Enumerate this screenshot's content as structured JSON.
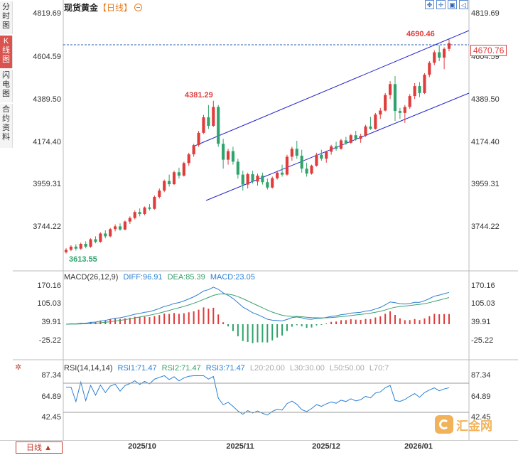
{
  "sidebar": {
    "tabs": [
      {
        "label": "分时图",
        "active": false
      },
      {
        "label": "K线图",
        "active": true
      },
      {
        "label": "闪电图",
        "active": false
      },
      {
        "label": "合约资料",
        "active": false
      }
    ]
  },
  "header": {
    "title": "现货黄金",
    "period_tag": "【日线】",
    "toggle_icon": "minus-circle-icon"
  },
  "toolbar": {
    "icons": [
      "fullscreen-icon",
      "crosshair-icon",
      "image-icon",
      "back-arrow-icon"
    ]
  },
  "colors": {
    "up": "#e03c3c",
    "down": "#2ea36b",
    "channel": "#2222cc",
    "macd_diff": "#2a7fd4",
    "macd_dea": "#3aa06a",
    "rsi": "#2a7fd4"
  },
  "price_axis": {
    "ticks": [
      "4819.69",
      "4604.59",
      "4389.50",
      "4174.40",
      "3959.31",
      "3744.22"
    ]
  },
  "current_price": "4670.76",
  "annotations": {
    "high": "4690.46",
    "peak": "4381.29",
    "low": "3613.55"
  },
  "macd": {
    "label": "MACD(26,12,9)",
    "diff_label": "DIFF:96.91",
    "dea_label": "DEA:85.39",
    "macd_label": "MACD:23.05",
    "ticks": [
      "170.16",
      "105.03",
      "39.91",
      "-25.22"
    ]
  },
  "rsi": {
    "label": "RSI(14,14,14)",
    "rsi1": "RSI1:71.47",
    "rsi2": "RSI2:71.47",
    "rsi3": "RSI3:71.47",
    "l20": "L20:20.00",
    "l30": "L30:30.00",
    "l50": "L50:50.00",
    "l70": "L70:7",
    "ticks": [
      "87.34",
      "64.89",
      "42.45"
    ]
  },
  "period_select": "日线 ▲",
  "x_axis": {
    "labels": [
      "2025/10",
      "2025/11",
      "2025/12",
      "2026/01"
    ]
  },
  "watermark": "汇金网",
  "chart_data": {
    "type": "candlestick",
    "title": "现货黄金",
    "ylim": [
      3613.55,
      4819.69
    ],
    "candles": [
      [
        3620,
        3640,
        3613.55,
        3632
      ],
      [
        3632,
        3655,
        3625,
        3648
      ],
      [
        3648,
        3660,
        3628,
        3638
      ],
      [
        3638,
        3668,
        3632,
        3662
      ],
      [
        3662,
        3675,
        3640,
        3648
      ],
      [
        3648,
        3690,
        3642,
        3685
      ],
      [
        3685,
        3700,
        3665,
        3672
      ],
      [
        3672,
        3720,
        3668,
        3714
      ],
      [
        3714,
        3730,
        3690,
        3700
      ],
      [
        3700,
        3742,
        3695,
        3736
      ],
      [
        3736,
        3760,
        3725,
        3750
      ],
      [
        3750,
        3765,
        3728,
        3734
      ],
      [
        3734,
        3780,
        3730,
        3774
      ],
      [
        3774,
        3800,
        3762,
        3792
      ],
      [
        3792,
        3830,
        3785,
        3822
      ],
      [
        3822,
        3840,
        3800,
        3812
      ],
      [
        3812,
        3850,
        3806,
        3845
      ],
      [
        3845,
        3862,
        3830,
        3838
      ],
      [
        3838,
        3905,
        3834,
        3898
      ],
      [
        3898,
        3940,
        3890,
        3930
      ],
      [
        3930,
        3985,
        3922,
        3978
      ],
      [
        3978,
        4010,
        3950,
        3962
      ],
      [
        3962,
        4030,
        3958,
        4022
      ],
      [
        4022,
        4045,
        3990,
        4005
      ],
      [
        4005,
        4075,
        4000,
        4068
      ],
      [
        4068,
        4120,
        4055,
        4112
      ],
      [
        4112,
        4165,
        4100,
        4158
      ],
      [
        4158,
        4230,
        4150,
        4220
      ],
      [
        4220,
        4310,
        4215,
        4298
      ],
      [
        4298,
        4360,
        4240,
        4255
      ],
      [
        4255,
        4381.29,
        4250,
        4350
      ],
      [
        4350,
        4360,
        4150,
        4165
      ],
      [
        4165,
        4190,
        4040,
        4085
      ],
      [
        4085,
        4140,
        4060,
        4128
      ],
      [
        4128,
        4150,
        4060,
        4075
      ],
      [
        4075,
        4090,
        3990,
        4010
      ],
      [
        4010,
        4030,
        3930,
        3960
      ],
      [
        3960,
        4020,
        3940,
        4012
      ],
      [
        4012,
        4030,
        3965,
        3975
      ],
      [
        3975,
        4015,
        3955,
        4005
      ],
      [
        4005,
        4020,
        3960,
        3972
      ],
      [
        3972,
        3990,
        3935,
        3945
      ],
      [
        3945,
        4000,
        3940,
        3992
      ],
      [
        3992,
        4030,
        3985,
        4020
      ],
      [
        4020,
        4060,
        4000,
        4010
      ],
      [
        4010,
        4110,
        4005,
        4100
      ],
      [
        4100,
        4150,
        4080,
        4140
      ],
      [
        4140,
        4180,
        4090,
        4105
      ],
      [
        4105,
        4135,
        4020,
        4040
      ],
      [
        4040,
        4070,
        4000,
        4015
      ],
      [
        4015,
        4060,
        4010,
        4055
      ],
      [
        4055,
        4120,
        4050,
        4110
      ],
      [
        4110,
        4135,
        4080,
        4090
      ],
      [
        4090,
        4130,
        4070,
        4125
      ],
      [
        4125,
        4160,
        4110,
        4152
      ],
      [
        4152,
        4175,
        4130,
        4140
      ],
      [
        4140,
        4190,
        4135,
        4182
      ],
      [
        4182,
        4200,
        4160,
        4170
      ],
      [
        4170,
        4215,
        4165,
        4208
      ],
      [
        4208,
        4230,
        4180,
        4190
      ],
      [
        4190,
        4215,
        4170,
        4205
      ],
      [
        4205,
        4260,
        4200,
        4252
      ],
      [
        4252,
        4300,
        4235,
        4240
      ],
      [
        4240,
        4320,
        4236,
        4312
      ],
      [
        4312,
        4345,
        4290,
        4332
      ],
      [
        4332,
        4420,
        4328,
        4410
      ],
      [
        4410,
        4480,
        4390,
        4465
      ],
      [
        4465,
        4505,
        4280,
        4330
      ],
      [
        4330,
        4345,
        4290,
        4320
      ],
      [
        4320,
        4360,
        4270,
        4350
      ],
      [
        4350,
        4415,
        4340,
        4405
      ],
      [
        4405,
        4470,
        4390,
        4455
      ],
      [
        4455,
        4475,
        4400,
        4420
      ],
      [
        4420,
        4520,
        4415,
        4512
      ],
      [
        4512,
        4580,
        4500,
        4572
      ],
      [
        4572,
        4635,
        4560,
        4625
      ],
      [
        4625,
        4660,
        4580,
        4598
      ],
      [
        4598,
        4650,
        4540,
        4642
      ],
      [
        4642,
        4690.46,
        4630,
        4670.76
      ]
    ],
    "series": [
      {
        "name": "DIFF",
        "value": 96.91
      },
      {
        "name": "DEA",
        "value": 85.39
      },
      {
        "name": "MACD",
        "value": 23.05
      },
      {
        "name": "RSI1",
        "value": 71.47
      },
      {
        "name": "RSI2",
        "value": 71.47
      },
      {
        "name": "RSI3",
        "value": 71.47
      }
    ],
    "macd_ylim": [
      -25.22,
      170.16
    ],
    "rsi_ylim": [
      42.45,
      87.34
    ]
  }
}
